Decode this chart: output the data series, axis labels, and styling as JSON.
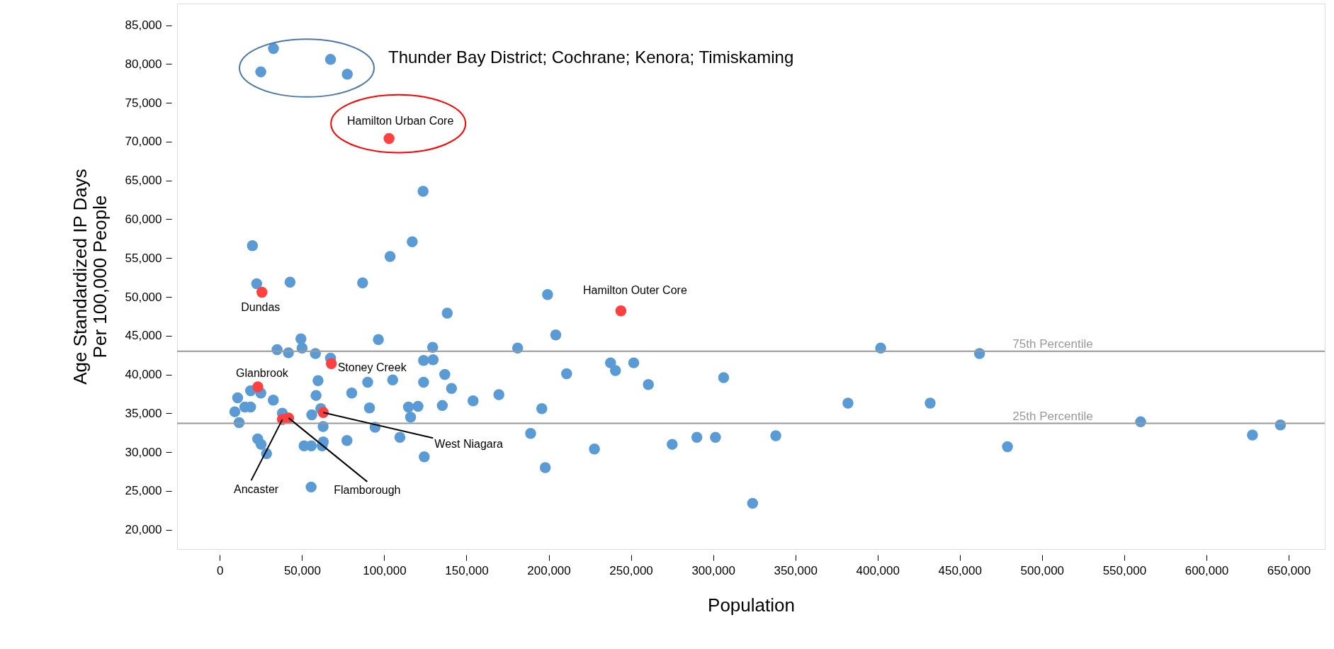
{
  "chart_data": {
    "type": "scatter",
    "xlabel": "Population",
    "ylabel": "Age Standardized IP Days\nPer 100,000 People",
    "xlim": [
      -26000,
      672000
    ],
    "ylim": [
      17500,
      87800
    ],
    "xticks": [
      0,
      {
        "value": 50000,
        "label": "50,000"
      },
      {
        "value": 100000,
        "label": "100,000"
      },
      {
        "value": 150000,
        "label": "150,000"
      },
      {
        "value": 200000,
        "label": "200,000"
      },
      {
        "value": 250000,
        "label": "250,000"
      },
      {
        "value": 300000,
        "label": "300,000"
      },
      {
        "value": 350000,
        "label": "350,000"
      },
      {
        "value": 400000,
        "label": "400,000"
      },
      {
        "value": 450000,
        "label": "450,000"
      },
      {
        "value": 500000,
        "label": "500,000"
      },
      {
        "value": 550000,
        "label": "550,000"
      },
      {
        "value": 600000,
        "label": "600,000"
      },
      {
        "value": 650000,
        "label": "650,000"
      }
    ],
    "yticks": [
      {
        "value": 20000,
        "label": "20,000"
      },
      {
        "value": 25000,
        "label": "25,000"
      },
      {
        "value": 30000,
        "label": "30,000"
      },
      {
        "value": 35000,
        "label": "35,000"
      },
      {
        "value": 40000,
        "label": "40,000"
      },
      {
        "value": 45000,
        "label": "45,000"
      },
      {
        "value": 50000,
        "label": "50,000"
      },
      {
        "value": 55000,
        "label": "55,000"
      },
      {
        "value": 60000,
        "label": "60,000"
      },
      {
        "value": 65000,
        "label": "65,000"
      },
      {
        "value": 70000,
        "label": "70,000"
      },
      {
        "value": 75000,
        "label": "75,000"
      },
      {
        "value": 80000,
        "label": "80,000"
      },
      {
        "value": 85000,
        "label": "85,000"
      }
    ],
    "grid": false,
    "marker": "circle",
    "series": [
      {
        "color": "#5b9bd5",
        "x": [
          32600,
          24900,
          67300,
          77500,
          123600,
          19800,
          117000,
          103500,
          22400,
          42700,
          86800,
          138300,
          96400,
          49300,
          50000,
          34800,
          41700,
          58100,
          67300,
          129400,
          123900,
          129700,
          136800,
          140900,
          154000,
          18700,
          24900,
          59700,
          89900,
          105100,
          123900,
          80200,
          58500,
          32500,
          10800,
          15200,
          18700,
          9100,
          11700,
          38000,
          91000,
          114700,
          120500,
          135300,
          116000,
          55900,
          61400,
          62800,
          94400,
          109500,
          124300,
          77300,
          23000,
          25100,
          28400,
          51200,
          55600,
          62200,
          62900,
          55500,
          199300,
          204300,
          181100,
          210900,
          237600,
          240600,
          251700,
          260600,
          306400,
          169700,
          195800,
          189000,
          227800,
          197900,
          275100,
          290100,
          301400,
          338100,
          324000,
          401900,
          462000,
          382000,
          432000,
          479000,
          560000,
          628000,
          645000
        ],
        "values": [
          82000,
          79000,
          80600,
          78700,
          63600,
          56600,
          57100,
          55200,
          51700,
          51900,
          51800,
          47900,
          44500,
          44600,
          43400,
          43200,
          42800,
          42700,
          42100,
          43500,
          41800,
          41900,
          40000,
          38200,
          36600,
          37900,
          37600,
          39200,
          39000,
          39300,
          39000,
          37600,
          37300,
          36700,
          37000,
          35800,
          35800,
          35200,
          33800,
          35000,
          35700,
          35800,
          35900,
          36000,
          34500,
          34800,
          35600,
          33300,
          33200,
          31900,
          29400,
          31500,
          31700,
          31000,
          29800,
          30800,
          30800,
          30800,
          31300,
          25500,
          50300,
          45100,
          43400,
          40100,
          41500,
          40500,
          41500,
          38700,
          39600,
          37400,
          35600,
          32400,
          30400,
          28000,
          31000,
          31900,
          31900,
          32100,
          23400,
          43400,
          42700,
          36300,
          36300,
          30700,
          33900,
          32200,
          33500
        ]
      },
      {
        "color": "#ff4040",
        "x": [
          102900,
          243900,
          25600,
          23100,
          67800,
          62900,
          38000,
          41800
        ],
        "values": [
          70400,
          48200,
          50600,
          38400,
          41400,
          35100,
          34200,
          34400
        ]
      }
    ],
    "ref_lines": [
      {
        "axis": "y",
        "value": 43000,
        "label": "75th Percentile",
        "color": "#999999"
      },
      {
        "axis": "y",
        "value": 33700,
        "label": "25th Percentile",
        "color": "#999999"
      }
    ],
    "annotations": [
      "Thunder Bay District; Cochrane; Kenora; Timiskaming",
      {
        "text": "Hamilton Urban Core",
        "x": 102900,
        "y": 70400
      },
      {
        "text": "Hamilton Outer Core",
        "x": 243900,
        "y": 48200
      },
      {
        "text": "Dundas",
        "x": 25600,
        "y": 50600
      },
      {
        "text": "Glanbrook",
        "x": 23100,
        "y": 38400
      },
      {
        "text": "Stoney Creek",
        "x": 67800,
        "y": 41400
      },
      {
        "text": "West Niagara",
        "x": 62900,
        "y": 35100
      },
      {
        "text": "Ancaster",
        "x": 38000,
        "y": 34200
      },
      {
        "text": "Flamborough",
        "x": 41800,
        "y": 34400
      }
    ]
  }
}
